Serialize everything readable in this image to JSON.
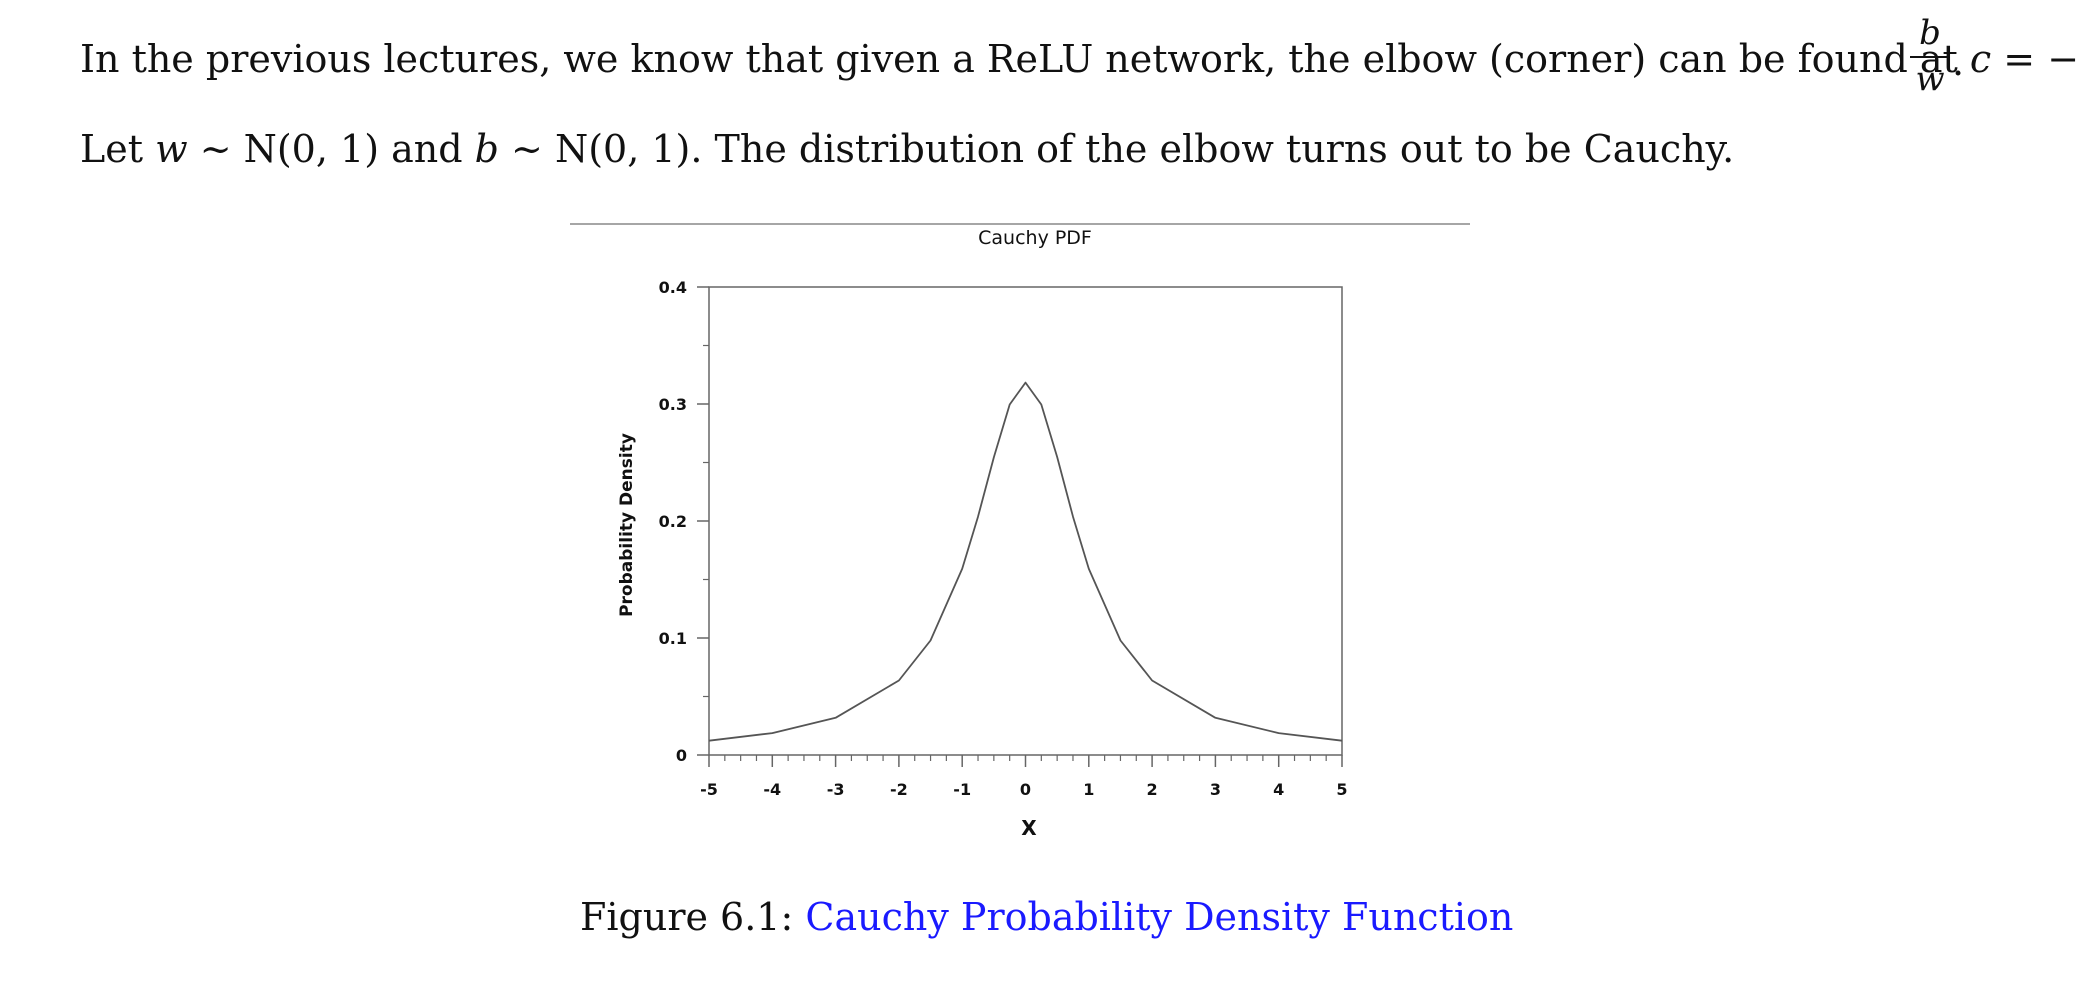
{
  "text": {
    "line1_prefix": "In the previous lectures, we know that given a ReLU network, the elbow (corner) can be found at ",
    "line1_c": "c",
    "line1_eq": " = −",
    "frac_num": "b",
    "frac_den": "w",
    "line1_end": ".",
    "line2_a": "Let ",
    "line2_w": "w",
    "line2_b": " ∼ N(0, 1) and ",
    "line2_bvar": "b",
    "line2_c": " ∼ N(0, 1). The distribution of the elbow turns out to be Cauchy."
  },
  "caption": {
    "label": "Figure 6.1: ",
    "title": "Cauchy Probability Density Function"
  },
  "chart_data": {
    "type": "line",
    "title": "Cauchy PDF",
    "xlabel": "X",
    "ylabel": "Probability Density",
    "xlim": [
      -5,
      5
    ],
    "ylim": [
      0,
      0.4
    ],
    "xticks": [
      "-5",
      "-4",
      "-3",
      "-2",
      "-1",
      "0",
      "1",
      "2",
      "3",
      "4",
      "5"
    ],
    "yticks": [
      "0",
      "0.1",
      "0.2",
      "0.3",
      "0.4"
    ],
    "grid": false,
    "series": [
      {
        "x": [
          -5,
          -4,
          -3,
          -2,
          -1.5,
          -1,
          -0.75,
          -0.5,
          -0.25,
          0,
          0.25,
          0.5,
          0.75,
          1,
          1.5,
          2,
          3,
          4,
          5
        ],
        "y": [
          0.0122,
          0.0187,
          0.0318,
          0.0637,
          0.0979,
          0.1592,
          0.2037,
          0.2546,
          0.2996,
          0.3183,
          0.2996,
          0.2546,
          0.2037,
          0.1592,
          0.0979,
          0.0637,
          0.0318,
          0.0187,
          0.0122
        ]
      }
    ],
    "line_color": "#555555"
  }
}
